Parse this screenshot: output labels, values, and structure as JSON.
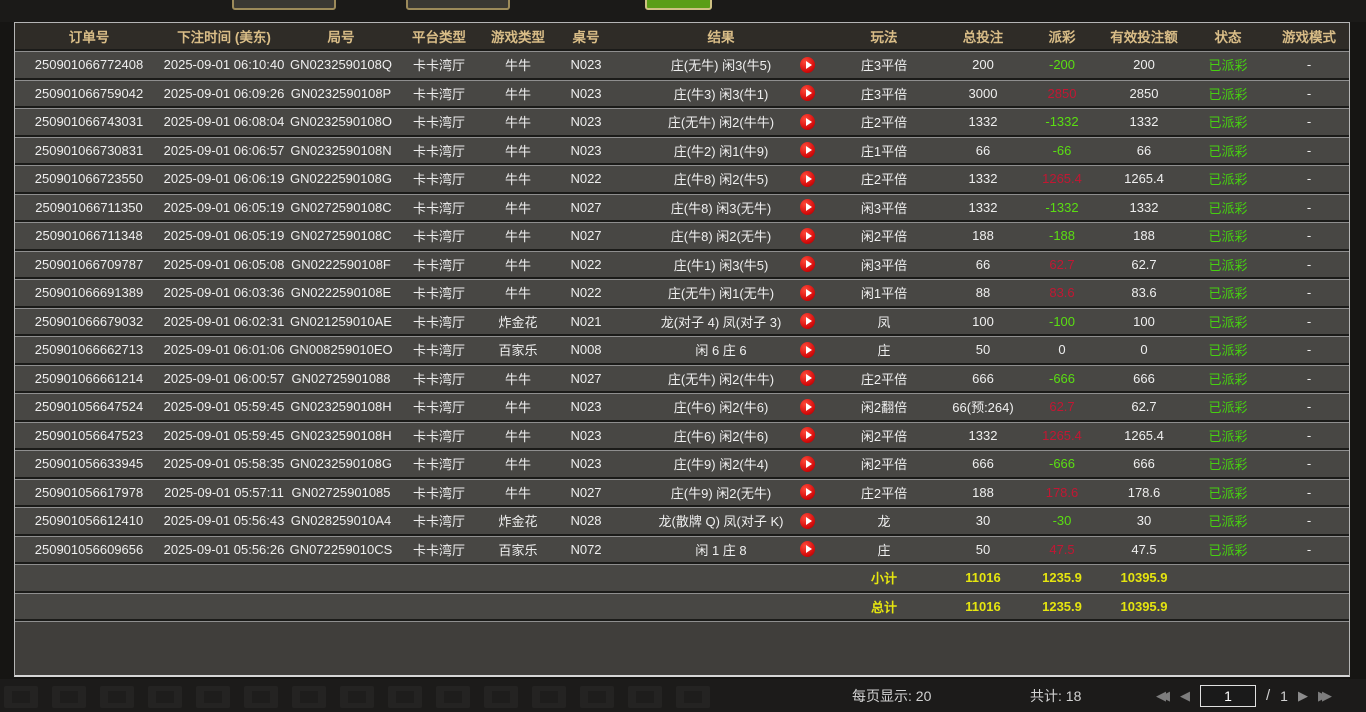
{
  "header": {
    "columns": [
      "订单号",
      "下注时间 (美东)",
      "局号",
      "平台类型",
      "游戏类型",
      "桌号",
      "结果",
      "玩法",
      "总投注",
      "派彩",
      "有效投注额",
      "状态",
      "游戏模式"
    ]
  },
  "rows": [
    {
      "order": "250901066772408",
      "time": "2025-09-01 06:10:40",
      "round": "GN0232590108Q",
      "platform": "卡卡湾厅",
      "game": "牛牛",
      "table": "N023",
      "result": "庄(无牛) 闲3(牛5)",
      "play": "庄3平倍",
      "total": "200",
      "payout": "-200",
      "payout_color": "green",
      "valid": "200",
      "status": "已派彩",
      "mode": "-"
    },
    {
      "order": "250901066759042",
      "time": "2025-09-01 06:09:26",
      "round": "GN0232590108P",
      "platform": "卡卡湾厅",
      "game": "牛牛",
      "table": "N023",
      "result": "庄(牛3) 闲3(牛1)",
      "play": "庄3平倍",
      "total": "3000",
      "payout": "2850",
      "payout_color": "red",
      "valid": "2850",
      "status": "已派彩",
      "mode": "-"
    },
    {
      "order": "250901066743031",
      "time": "2025-09-01 06:08:04",
      "round": "GN0232590108O",
      "platform": "卡卡湾厅",
      "game": "牛牛",
      "table": "N023",
      "result": "庄(无牛) 闲2(牛牛)",
      "play": "庄2平倍",
      "total": "1332",
      "payout": "-1332",
      "payout_color": "green",
      "valid": "1332",
      "status": "已派彩",
      "mode": "-"
    },
    {
      "order": "250901066730831",
      "time": "2025-09-01 06:06:57",
      "round": "GN0232590108N",
      "platform": "卡卡湾厅",
      "game": "牛牛",
      "table": "N023",
      "result": "庄(牛2) 闲1(牛9)",
      "play": "庄1平倍",
      "total": "66",
      "payout": "-66",
      "payout_color": "green",
      "valid": "66",
      "status": "已派彩",
      "mode": "-"
    },
    {
      "order": "250901066723550",
      "time": "2025-09-01 06:06:19",
      "round": "GN0222590108G",
      "platform": "卡卡湾厅",
      "game": "牛牛",
      "table": "N022",
      "result": "庄(牛8) 闲2(牛5)",
      "play": "庄2平倍",
      "total": "1332",
      "payout": "1265.4",
      "payout_color": "red",
      "valid": "1265.4",
      "status": "已派彩",
      "mode": "-"
    },
    {
      "order": "250901066711350",
      "time": "2025-09-01 06:05:19",
      "round": "GN0272590108C",
      "platform": "卡卡湾厅",
      "game": "牛牛",
      "table": "N027",
      "result": "庄(牛8) 闲3(无牛)",
      "play": "闲3平倍",
      "total": "1332",
      "payout": "-1332",
      "payout_color": "green",
      "valid": "1332",
      "status": "已派彩",
      "mode": "-"
    },
    {
      "order": "250901066711348",
      "time": "2025-09-01 06:05:19",
      "round": "GN0272590108C",
      "platform": "卡卡湾厅",
      "game": "牛牛",
      "table": "N027",
      "result": "庄(牛8) 闲2(无牛)",
      "play": "闲2平倍",
      "total": "188",
      "payout": "-188",
      "payout_color": "green",
      "valid": "188",
      "status": "已派彩",
      "mode": "-"
    },
    {
      "order": "250901066709787",
      "time": "2025-09-01 06:05:08",
      "round": "GN0222590108F",
      "platform": "卡卡湾厅",
      "game": "牛牛",
      "table": "N022",
      "result": "庄(牛1) 闲3(牛5)",
      "play": "闲3平倍",
      "total": "66",
      "payout": "62.7",
      "payout_color": "red",
      "valid": "62.7",
      "status": "已派彩",
      "mode": "-"
    },
    {
      "order": "250901066691389",
      "time": "2025-09-01 06:03:36",
      "round": "GN0222590108E",
      "platform": "卡卡湾厅",
      "game": "牛牛",
      "table": "N022",
      "result": "庄(无牛) 闲1(无牛)",
      "play": "闲1平倍",
      "total": "88",
      "payout": "83.6",
      "payout_color": "red",
      "valid": "83.6",
      "status": "已派彩",
      "mode": "-"
    },
    {
      "order": "250901066679032",
      "time": "2025-09-01 06:02:31",
      "round": "GN021259010AE",
      "platform": "卡卡湾厅",
      "game": "炸金花",
      "table": "N021",
      "result": "龙(对子 4) 凤(对子 3)",
      "play": "凤",
      "total": "100",
      "payout": "-100",
      "payout_color": "green",
      "valid": "100",
      "status": "已派彩",
      "mode": "-"
    },
    {
      "order": "250901066662713",
      "time": "2025-09-01 06:01:06",
      "round": "GN008259010EO",
      "platform": "卡卡湾厅",
      "game": "百家乐",
      "table": "N008",
      "result": "闲 6 庄 6",
      "play": "庄",
      "total": "50",
      "payout": "0",
      "payout_color": "neutral",
      "valid": "0",
      "status": "已派彩",
      "mode": "-"
    },
    {
      "order": "250901066661214",
      "time": "2025-09-01 06:00:57",
      "round": "GN02725901088",
      "platform": "卡卡湾厅",
      "game": "牛牛",
      "table": "N027",
      "result": "庄(无牛) 闲2(牛牛)",
      "play": "庄2平倍",
      "total": "666",
      "payout": "-666",
      "payout_color": "green",
      "valid": "666",
      "status": "已派彩",
      "mode": "-"
    },
    {
      "order": "250901056647524",
      "time": "2025-09-01 05:59:45",
      "round": "GN0232590108H",
      "platform": "卡卡湾厅",
      "game": "牛牛",
      "table": "N023",
      "result": "庄(牛6) 闲2(牛6)",
      "play": "闲2翻倍",
      "total": "66(预:264)",
      "payout": "62.7",
      "payout_color": "red",
      "valid": "62.7",
      "status": "已派彩",
      "mode": "-"
    },
    {
      "order": "250901056647523",
      "time": "2025-09-01 05:59:45",
      "round": "GN0232590108H",
      "platform": "卡卡湾厅",
      "game": "牛牛",
      "table": "N023",
      "result": "庄(牛6) 闲2(牛6)",
      "play": "闲2平倍",
      "total": "1332",
      "payout": "1265.4",
      "payout_color": "red",
      "valid": "1265.4",
      "status": "已派彩",
      "mode": "-"
    },
    {
      "order": "250901056633945",
      "time": "2025-09-01 05:58:35",
      "round": "GN0232590108G",
      "platform": "卡卡湾厅",
      "game": "牛牛",
      "table": "N023",
      "result": "庄(牛9) 闲2(牛4)",
      "play": "闲2平倍",
      "total": "666",
      "payout": "-666",
      "payout_color": "green",
      "valid": "666",
      "status": "已派彩",
      "mode": "-"
    },
    {
      "order": "250901056617978",
      "time": "2025-09-01 05:57:11",
      "round": "GN02725901085",
      "platform": "卡卡湾厅",
      "game": "牛牛",
      "table": "N027",
      "result": "庄(牛9) 闲2(无牛)",
      "play": "庄2平倍",
      "total": "188",
      "payout": "178.6",
      "payout_color": "red",
      "valid": "178.6",
      "status": "已派彩",
      "mode": "-"
    },
    {
      "order": "250901056612410",
      "time": "2025-09-01 05:56:43",
      "round": "GN028259010A4",
      "platform": "卡卡湾厅",
      "game": "炸金花",
      "table": "N028",
      "result": "龙(散牌 Q) 凤(对子 K)",
      "play": "龙",
      "total": "30",
      "payout": "-30",
      "payout_color": "green",
      "valid": "30",
      "status": "已派彩",
      "mode": "-"
    },
    {
      "order": "250901056609656",
      "time": "2025-09-01 05:56:26",
      "round": "GN072259010CS",
      "platform": "卡卡湾厅",
      "game": "百家乐",
      "table": "N072",
      "result": "闲 1 庄 8",
      "play": "庄",
      "total": "50",
      "payout": "47.5",
      "payout_color": "red",
      "valid": "47.5",
      "status": "已派彩",
      "mode": "-"
    }
  ],
  "summary": [
    {
      "label": "小计",
      "total": "11016",
      "payout": "1235.9",
      "valid": "10395.9"
    },
    {
      "label": "总计",
      "total": "11016",
      "payout": "1235.9",
      "valid": "10395.9"
    }
  ],
  "pagination": {
    "per_page": "每页显示: 20",
    "total_count": "共计: 18",
    "page": "1",
    "separator": "/",
    "page_total": "1"
  },
  "colors": {
    "payout_positive": "#c21733",
    "payout_negative": "#5ade12",
    "status_paid": "#46d110",
    "summary_yellow": "#e5e50f",
    "header_gold": "#d9bd87"
  }
}
